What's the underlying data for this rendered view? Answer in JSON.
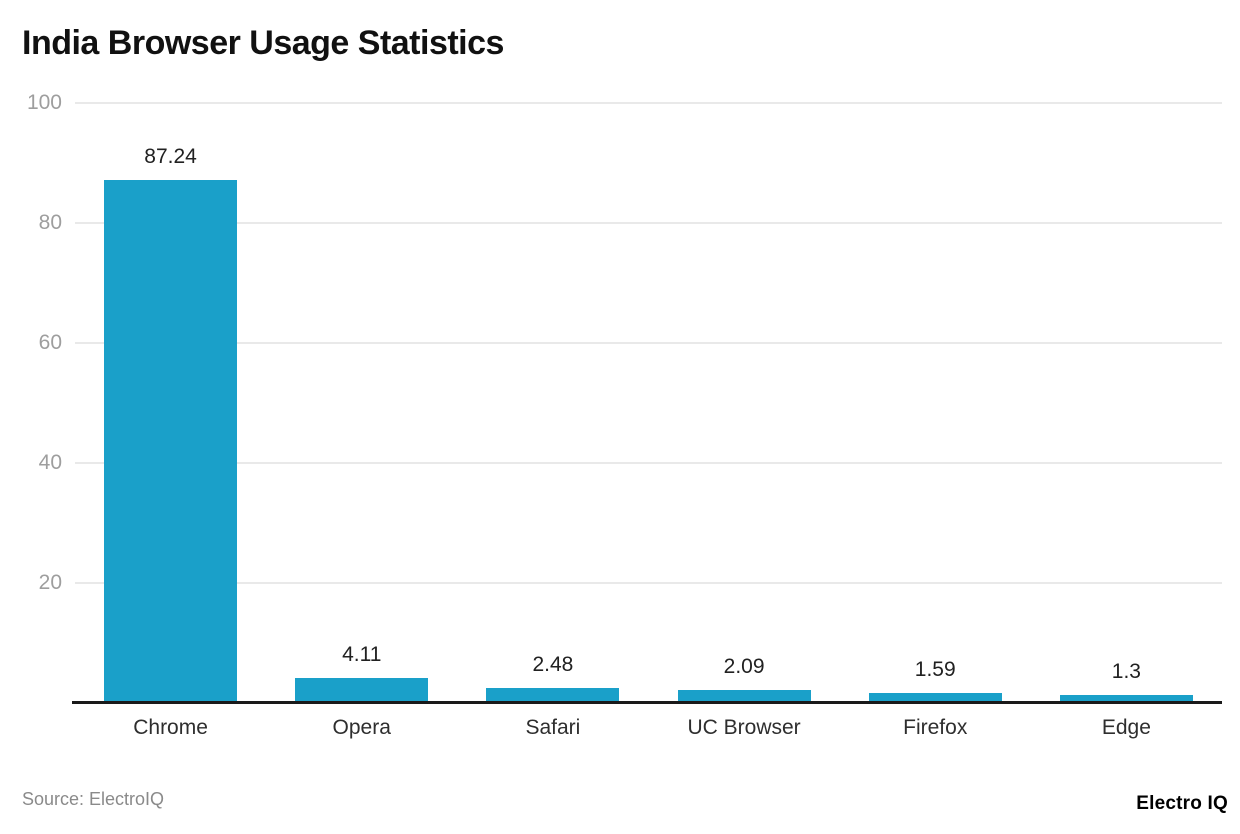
{
  "header": {
    "title": "India Browser Usage Statistics"
  },
  "footer": {
    "source": "Source: ElectroIQ",
    "brand": "Electro IQ"
  },
  "colors": {
    "bar": "#1aa0c9",
    "gridline": "#e9e9e9",
    "axis": "#1a1a1a",
    "ytick_text": "#9e9e9e"
  },
  "chart_data": {
    "type": "bar",
    "title": "India Browser Usage Statistics",
    "categories": [
      "Chrome",
      "Opera",
      "Safari",
      "UC Browser",
      "Firefox",
      "Edge"
    ],
    "values": [
      87.24,
      4.11,
      2.48,
      2.09,
      1.59,
      1.3
    ],
    "value_labels": [
      "87.24",
      "4.11",
      "2.48",
      "2.09",
      "1.59",
      "1.3"
    ],
    "xlabel": "",
    "ylabel": "",
    "ylim": [
      0,
      100
    ],
    "yticks": [
      20,
      40,
      60,
      80,
      100
    ],
    "grid": "horizontal",
    "legend": "none"
  }
}
